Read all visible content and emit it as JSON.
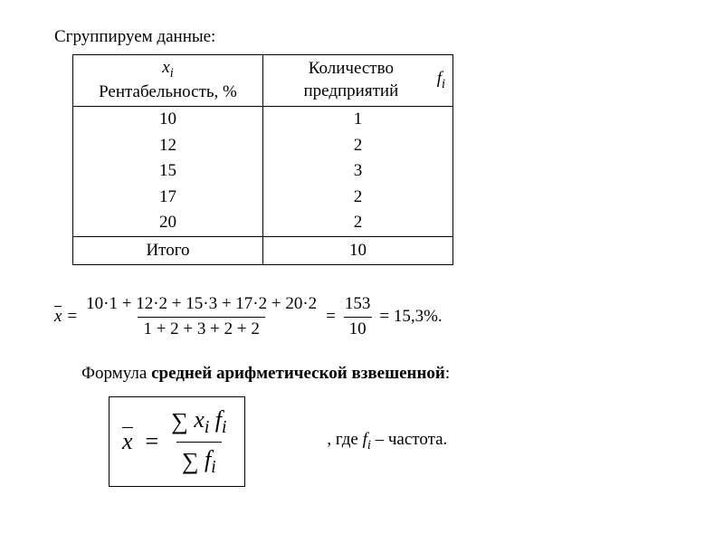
{
  "intro": "Сгруппируем данные:",
  "table": {
    "header": {
      "x_symbol": "x",
      "x_sub": "i",
      "x_caption": "Рентабельность, %",
      "f_caption": "Количество предприятий",
      "f_symbol": "f",
      "f_sub": "i"
    },
    "rows": [
      {
        "x": "10",
        "f": "1"
      },
      {
        "x": "12",
        "f": "2"
      },
      {
        "x": "15",
        "f": "3"
      },
      {
        "x": "17",
        "f": "2"
      },
      {
        "x": "20",
        "f": "2"
      }
    ],
    "footer": {
      "label": "Итого",
      "total": "10"
    }
  },
  "calc": {
    "lhs_symbol": "x",
    "eq1": "=",
    "numerator1": "10·1 + 12·2 + 15·3 + 17·2 + 20·2",
    "denominator1": "1 + 2 + 3 + 2 + 2",
    "eq2": "=",
    "numerator2": "153",
    "denominator2": "10",
    "eq3": "= 15,3%."
  },
  "formula": {
    "label_prefix": "Формула ",
    "label_bold": "средней арифметической взвешенной",
    "label_suffix": ":",
    "lhs_symbol": "x",
    "eq": "=",
    "sum_symbol": "∑",
    "x_sym": "x",
    "f_sym": "f",
    "sub": "i",
    "caption_prefix": ", где ",
    "caption_var_f": "f",
    "caption_var_sub": "i",
    "caption_suffix": " – частота."
  },
  "style": {
    "background": "#ffffff",
    "text_color": "#000000",
    "border_color": "#000000",
    "font_family": "Times New Roman",
    "base_fontsize_pt": 14
  }
}
